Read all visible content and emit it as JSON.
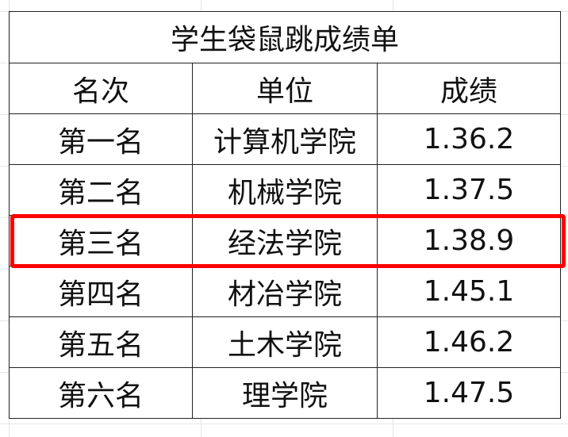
{
  "title": "学生袋鼠跳成绩单",
  "headers": [
    "名次",
    "单位",
    "成绩"
  ],
  "rows": [
    [
      "第一名",
      "计算机学院",
      "1.36.2"
    ],
    [
      "第二名",
      "机械学院",
      "1.37.5"
    ],
    [
      "第三名",
      "经法学院",
      "1.38.9"
    ],
    [
      "第四名",
      "材冶学院",
      "1.45.1"
    ],
    [
      "第五名",
      "土木学院",
      "1.46.2"
    ],
    [
      "第六名",
      "理学院",
      "1.47.5"
    ]
  ],
  "highlight": {
    "row_index": 2,
    "color": "#ff0000"
  }
}
